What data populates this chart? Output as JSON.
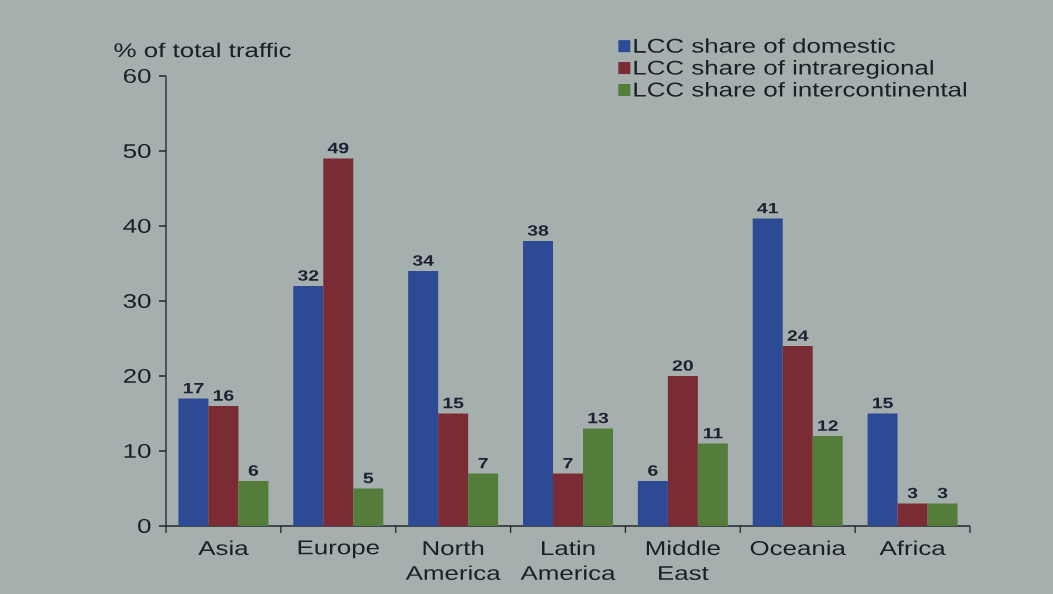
{
  "chart_data": {
    "type": "bar",
    "ylabel": "% of total traffic",
    "categories": [
      "Asia",
      "Europe",
      "North America",
      "Latin America",
      "Middle East",
      "Oceania",
      "Africa"
    ],
    "series": [
      {
        "name": "LCC share of domestic",
        "color": "#2d4b94",
        "values": [
          17,
          32,
          34,
          38,
          6,
          41,
          15
        ]
      },
      {
        "name": "LCC share of intraregional",
        "color": "#7a2b33",
        "values": [
          16,
          49,
          15,
          7,
          20,
          24,
          3
        ]
      },
      {
        "name": "LCC share of intercontinental",
        "color": "#547d3c",
        "values": [
          6,
          5,
          7,
          13,
          11,
          12,
          3
        ]
      }
    ],
    "ylim": [
      0,
      60
    ],
    "yticks": [
      0,
      10,
      20,
      30,
      40,
      50,
      60
    ],
    "data_labels": true,
    "legend": "top right"
  }
}
